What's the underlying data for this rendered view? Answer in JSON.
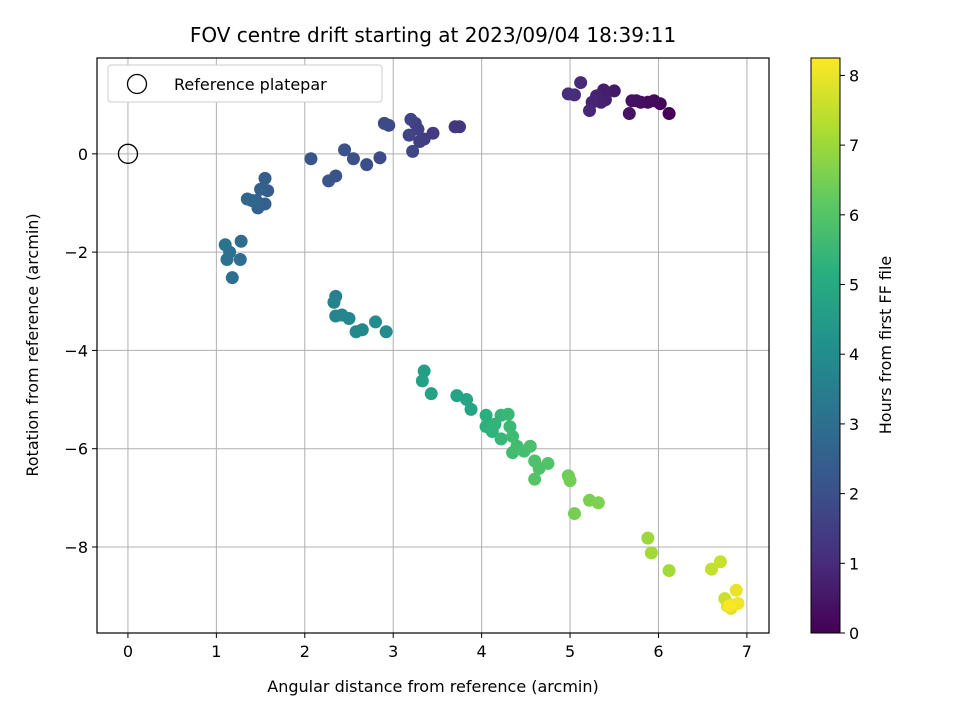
{
  "chart_data": {
    "type": "scatter",
    "title": "FOV centre drift starting at 2023/09/04 18:39:11",
    "xlabel": "Angular distance from reference (arcmin)",
    "ylabel": "Rotation from reference (arcmin)",
    "xlim": [
      -0.35,
      7.25
    ],
    "ylim": [
      -9.75,
      1.95
    ],
    "xticks": [
      0,
      1,
      2,
      3,
      4,
      5,
      6,
      7
    ],
    "yticks": [
      -8,
      -6,
      -4,
      -2,
      0
    ],
    "grid": true,
    "legend": {
      "position": "top-left",
      "entries": [
        "Reference platepar"
      ]
    },
    "reference_point": {
      "x": 0,
      "y": 0
    },
    "colorbar": {
      "label": "Hours from first FF file",
      "range": [
        0,
        8.25
      ],
      "ticks": [
        0,
        1,
        2,
        3,
        4,
        5,
        6,
        7,
        8
      ],
      "colormap": "viridis"
    },
    "points": [
      [
        6.12,
        0.82,
        0.0
      ],
      [
        6.02,
        1.02,
        0.1
      ],
      [
        5.95,
        1.08,
        0.2
      ],
      [
        5.88,
        1.05,
        0.25
      ],
      [
        5.8,
        1.05,
        0.3
      ],
      [
        5.75,
        1.08,
        0.35
      ],
      [
        5.7,
        1.08,
        0.4
      ],
      [
        5.67,
        0.82,
        0.45
      ],
      [
        5.5,
        1.28,
        0.55
      ],
      [
        5.4,
        1.22,
        0.6
      ],
      [
        5.38,
        1.3,
        0.65
      ],
      [
        5.4,
        1.1,
        0.7
      ],
      [
        5.35,
        1.05,
        0.75
      ],
      [
        5.3,
        1.18,
        0.8
      ],
      [
        5.25,
        1.05,
        0.85
      ],
      [
        5.22,
        0.88,
        0.9
      ],
      [
        5.12,
        1.45,
        0.95
      ],
      [
        5.05,
        1.2,
        1.0
      ],
      [
        4.98,
        1.22,
        1.05
      ],
      [
        3.75,
        0.55,
        1.3
      ],
      [
        3.7,
        0.55,
        1.35
      ],
      [
        3.45,
        0.42,
        1.4
      ],
      [
        3.35,
        0.3,
        1.45
      ],
      [
        3.3,
        0.25,
        1.5
      ],
      [
        3.28,
        0.5,
        1.55
      ],
      [
        3.25,
        0.62,
        1.6
      ],
      [
        3.2,
        0.7,
        1.65
      ],
      [
        3.18,
        0.38,
        1.7
      ],
      [
        3.22,
        0.05,
        1.75
      ],
      [
        2.95,
        0.58,
        1.8
      ],
      [
        2.9,
        0.62,
        1.85
      ],
      [
        2.85,
        -0.08,
        1.9
      ],
      [
        2.7,
        -0.22,
        1.95
      ],
      [
        2.55,
        -0.1,
        2.0
      ],
      [
        2.45,
        0.08,
        2.05
      ],
      [
        2.35,
        -0.45,
        2.1
      ],
      [
        2.27,
        -0.55,
        2.15
      ],
      [
        2.07,
        -0.1,
        2.2
      ],
      [
        1.58,
        -0.75,
        2.4
      ],
      [
        1.55,
        -0.5,
        2.45
      ],
      [
        1.55,
        -1.02,
        2.5
      ],
      [
        1.5,
        -0.72,
        2.55
      ],
      [
        1.47,
        -1.1,
        2.6
      ],
      [
        1.45,
        -0.95,
        2.65
      ],
      [
        1.4,
        -0.95,
        2.7
      ],
      [
        1.35,
        -0.92,
        2.75
      ],
      [
        1.28,
        -1.78,
        2.9
      ],
      [
        1.27,
        -2.15,
        2.95
      ],
      [
        1.18,
        -2.52,
        3.0
      ],
      [
        1.15,
        -2.0,
        3.05
      ],
      [
        1.12,
        -2.15,
        3.1
      ],
      [
        1.1,
        -1.85,
        3.15
      ],
      [
        2.35,
        -2.9,
        3.6
      ],
      [
        2.33,
        -3.02,
        3.65
      ],
      [
        2.35,
        -3.3,
        3.7
      ],
      [
        2.42,
        -3.28,
        3.75
      ],
      [
        2.5,
        -3.35,
        3.8
      ],
      [
        2.58,
        -3.62,
        3.85
      ],
      [
        2.65,
        -3.58,
        3.9
      ],
      [
        2.8,
        -3.42,
        3.95
      ],
      [
        2.92,
        -3.62,
        4.0
      ],
      [
        3.35,
        -4.42,
        4.6
      ],
      [
        3.33,
        -4.62,
        4.65
      ],
      [
        3.43,
        -4.88,
        4.7
      ],
      [
        3.72,
        -4.92,
        4.75
      ],
      [
        3.83,
        -5.0,
        4.8
      ],
      [
        3.88,
        -5.2,
        4.85
      ],
      [
        4.05,
        -5.32,
        5.2
      ],
      [
        4.05,
        -5.55,
        5.25
      ],
      [
        4.12,
        -5.65,
        5.3
      ],
      [
        4.15,
        -5.5,
        5.35
      ],
      [
        4.22,
        -5.32,
        5.4
      ],
      [
        4.22,
        -5.8,
        5.45
      ],
      [
        4.3,
        -5.3,
        5.5
      ],
      [
        4.32,
        -5.55,
        5.55
      ],
      [
        4.35,
        -5.75,
        5.6
      ],
      [
        4.35,
        -6.08,
        5.65
      ],
      [
        4.4,
        -5.95,
        5.7
      ],
      [
        4.48,
        -6.05,
        5.75
      ],
      [
        4.55,
        -5.95,
        5.8
      ],
      [
        4.6,
        -6.25,
        5.85
      ],
      [
        4.65,
        -6.4,
        5.9
      ],
      [
        4.75,
        -6.3,
        5.95
      ],
      [
        4.6,
        -6.62,
        6.0
      ],
      [
        4.98,
        -6.55,
        6.4
      ],
      [
        5.0,
        -6.65,
        6.45
      ],
      [
        5.05,
        -7.32,
        6.5
      ],
      [
        5.22,
        -7.05,
        6.55
      ],
      [
        5.32,
        -7.1,
        6.6
      ],
      [
        5.88,
        -7.82,
        7.0
      ],
      [
        5.92,
        -8.12,
        7.05
      ],
      [
        6.12,
        -8.48,
        7.1
      ],
      [
        6.6,
        -8.45,
        7.5
      ],
      [
        6.7,
        -8.3,
        7.55
      ],
      [
        6.75,
        -9.05,
        7.6
      ],
      [
        6.78,
        -9.2,
        7.7
      ],
      [
        6.82,
        -9.25,
        7.8
      ],
      [
        6.85,
        -9.18,
        7.9
      ],
      [
        6.88,
        -8.88,
        8.0
      ],
      [
        6.9,
        -9.15,
        8.1
      ],
      [
        6.8,
        -9.2,
        8.2
      ]
    ]
  }
}
